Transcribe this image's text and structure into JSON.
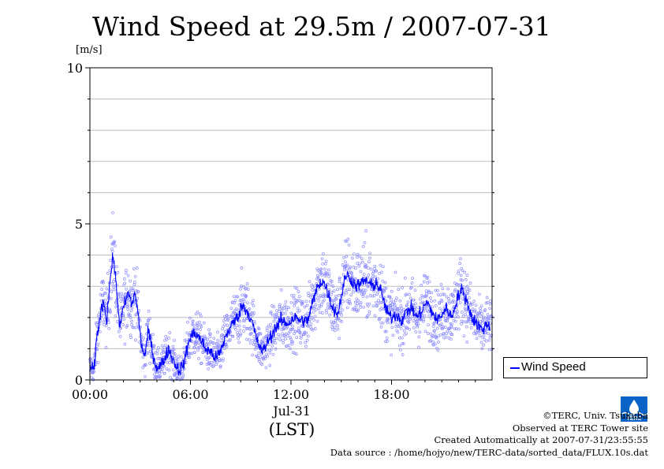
{
  "title": "Wind Speed at 29.5m / 2007-07-31",
  "chart_data": {
    "type": "scatter",
    "ylabel": "[m/s]",
    "ylim": [
      0,
      10
    ],
    "yticks": [
      "0",
      "5",
      "10"
    ],
    "xlim_hours": [
      0,
      24
    ],
    "xticks": [
      {
        "hour": 0,
        "label": "00:00"
      },
      {
        "hour": 6,
        "label": "06:00"
      },
      {
        "hour": 12,
        "label": "12:00"
      },
      {
        "hour": 18,
        "label": "18:00"
      }
    ],
    "xsub_label": "Jul-31",
    "xunit_label": "(LST)",
    "grid": "horizontal",
    "legend_placement": "right",
    "series": [
      {
        "name": "Wind Speed",
        "kind": "line",
        "color": "#0000ff",
        "profile": [
          [
            0,
            0.4
          ],
          [
            0.25,
            0.3
          ],
          [
            0.4,
            1.3
          ],
          [
            0.6,
            2.0
          ],
          [
            0.8,
            2.6
          ],
          [
            1.0,
            1.9
          ],
          [
            1.2,
            3.2
          ],
          [
            1.4,
            4.0
          ],
          [
            1.6,
            2.8
          ],
          [
            1.8,
            1.7
          ],
          [
            2.0,
            2.3
          ],
          [
            2.3,
            2.8
          ],
          [
            2.5,
            2.4
          ],
          [
            2.7,
            2.8
          ],
          [
            2.9,
            2.0
          ],
          [
            3.1,
            1.0
          ],
          [
            3.3,
            0.8
          ],
          [
            3.5,
            1.6
          ],
          [
            3.7,
            1.0
          ],
          [
            3.9,
            0.5
          ],
          [
            4.1,
            0.4
          ],
          [
            4.4,
            0.6
          ],
          [
            4.7,
            1.0
          ],
          [
            5.0,
            0.6
          ],
          [
            5.3,
            0.3
          ],
          [
            5.6,
            0.5
          ],
          [
            5.8,
            1.0
          ],
          [
            6.0,
            1.4
          ],
          [
            6.3,
            1.5
          ],
          [
            6.6,
            1.3
          ],
          [
            6.9,
            1.0
          ],
          [
            7.2,
            0.9
          ],
          [
            7.5,
            0.7
          ],
          [
            7.8,
            0.9
          ],
          [
            8.1,
            1.4
          ],
          [
            8.5,
            1.8
          ],
          [
            8.8,
            2.0
          ],
          [
            9.1,
            2.4
          ],
          [
            9.4,
            2.2
          ],
          [
            9.7,
            1.8
          ],
          [
            10.0,
            1.2
          ],
          [
            10.3,
            0.9
          ],
          [
            10.6,
            1.2
          ],
          [
            11.0,
            1.6
          ],
          [
            11.4,
            1.9
          ],
          [
            11.8,
            1.8
          ],
          [
            12.2,
            2.0
          ],
          [
            12.6,
            1.9
          ],
          [
            13.0,
            1.9
          ],
          [
            13.3,
            2.5
          ],
          [
            13.6,
            3.0
          ],
          [
            13.9,
            3.2
          ],
          [
            14.2,
            2.8
          ],
          [
            14.5,
            2.3
          ],
          [
            14.8,
            2.1
          ],
          [
            15.0,
            2.7
          ],
          [
            15.3,
            3.4
          ],
          [
            15.6,
            3.2
          ],
          [
            15.9,
            3.0
          ],
          [
            16.2,
            3.1
          ],
          [
            16.5,
            3.2
          ],
          [
            16.8,
            3.0
          ],
          [
            17.1,
            3.1
          ],
          [
            17.4,
            2.8
          ],
          [
            17.7,
            2.2
          ],
          [
            18.0,
            2.0
          ],
          [
            18.3,
            2.1
          ],
          [
            18.6,
            1.9
          ],
          [
            18.9,
            2.2
          ],
          [
            19.2,
            2.3
          ],
          [
            19.5,
            2.0
          ],
          [
            19.8,
            2.2
          ],
          [
            20.1,
            2.5
          ],
          [
            20.4,
            2.2
          ],
          [
            20.7,
            1.9
          ],
          [
            21.0,
            2.1
          ],
          [
            21.3,
            2.3
          ],
          [
            21.6,
            2.0
          ],
          [
            21.9,
            2.6
          ],
          [
            22.2,
            2.9
          ],
          [
            22.5,
            2.5
          ],
          [
            22.8,
            2.0
          ],
          [
            23.1,
            1.8
          ],
          [
            23.4,
            1.6
          ],
          [
            23.7,
            1.8
          ],
          [
            23.9,
            1.7
          ]
        ]
      },
      {
        "name": "",
        "kind": "scatter",
        "color": "#8c8cff",
        "samples_per_hour": 80
      }
    ]
  },
  "footer": {
    "line1": "©TERC, Univ. Tsukuba",
    "line2": "Observed at TERC Tower site",
    "line3": "Created Automatically at 2007-07-31/23:55:55",
    "line4": "Data source : /home/hojyo/new/TERC-data/sorted_data/FLUX.10s.dat"
  },
  "logo": {
    "text": "TERC",
    "color": "#0a64c8"
  }
}
